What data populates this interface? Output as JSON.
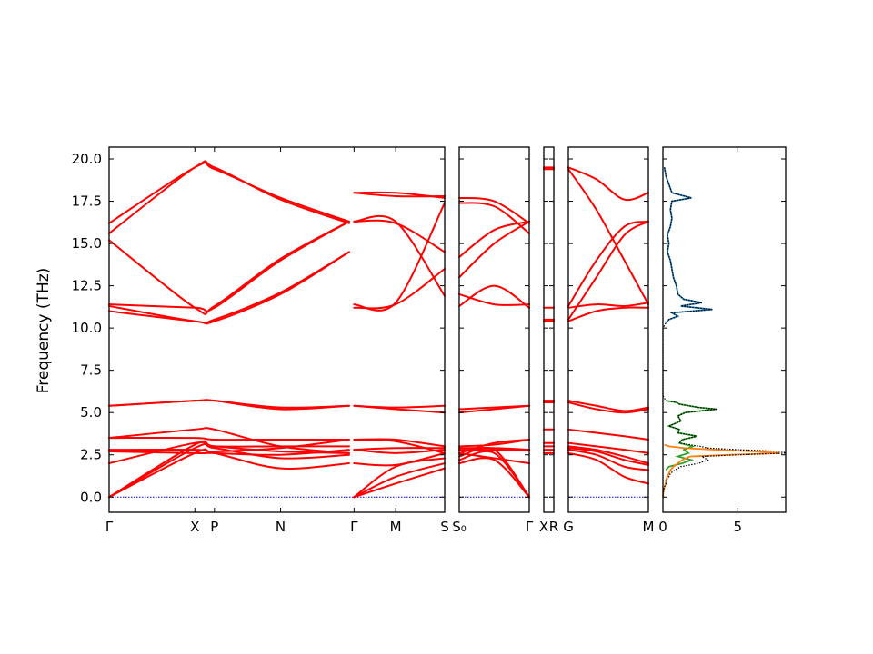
{
  "chart_data": {
    "type": "line",
    "ylabel": "Frequency (THz)",
    "ylim": [
      -0.9,
      20.7
    ],
    "y_ticks": [
      0.0,
      2.5,
      5.0,
      7.5,
      10.0,
      12.5,
      15.0,
      17.5,
      20.0
    ],
    "y_tick_labels": [
      "0.0",
      "2.5",
      "5.0",
      "7.5",
      "10.0",
      "12.5",
      "15.0",
      "17.5",
      "20.0"
    ],
    "band_color": "#ff0000",
    "zero_line_color": "#0000cc",
    "band_panels": [
      {
        "name": "panel-1",
        "x_ticks": [
          0,
          0.35,
          0.43,
          0.7,
          1.0,
          1.17,
          1.37
        ],
        "x_tick_labels": [
          "Γ",
          "X",
          "P",
          "N",
          "Γ",
          "M",
          "S"
        ],
        "segments": [
          {
            "x": [
              0,
              0.35,
              0.43,
              0.7,
              0.98
            ],
            "bands": [
              [
                0.0,
                2.6,
                2.6,
                1.7,
                2.0
              ],
              [
                0.0,
                2.9,
                2.9,
                2.3,
                2.5
              ],
              [
                0.0,
                3.1,
                3.0,
                2.7,
                2.6
              ],
              [
                2.0,
                3.2,
                3.0,
                3.0,
                3.0
              ],
              [
                2.7,
                2.6,
                2.6,
                2.5,
                2.8
              ],
              [
                2.8,
                2.8,
                2.7,
                2.9,
                3.4
              ],
              [
                3.5,
                4.0,
                4.0,
                3.0,
                2.6
              ],
              [
                3.5,
                3.5,
                3.4,
                3.4,
                3.4
              ],
              [
                5.4,
                5.7,
                5.7,
                5.2,
                5.4
              ],
              [
                5.4,
                5.7,
                5.7,
                5.3,
                5.4
              ],
              [
                11.0,
                10.4,
                10.4,
                12.0,
                14.5
              ],
              [
                11.3,
                10.4,
                10.5,
                12.1,
                14.5
              ],
              [
                11.4,
                11.2,
                11.2,
                14.0,
                16.3
              ],
              [
                15.2,
                11.2,
                11.3,
                14.1,
                16.3
              ],
              [
                15.6,
                19.5,
                19.5,
                17.6,
                16.2
              ],
              [
                16.2,
                19.5,
                19.4,
                17.7,
                16.3
              ]
            ]
          },
          {
            "x": [
              1.0,
              1.17,
              1.37
            ],
            "bands": [
              [
                0.0,
                0.8,
                1.7
              ],
              [
                0.0,
                1.2,
                2.0
              ],
              [
                0.0,
                1.8,
                2.3
              ],
              [
                2.0,
                1.9,
                2.6
              ],
              [
                2.8,
                2.6,
                2.8
              ],
              [
                2.8,
                2.9,
                2.9
              ],
              [
                3.4,
                3.4,
                3.0
              ],
              [
                3.4,
                3.3,
                2.6
              ],
              [
                5.4,
                5.2,
                5.0
              ],
              [
                5.4,
                5.3,
                5.4
              ],
              [
                11.2,
                11.4,
                13.5
              ],
              [
                11.4,
                11.5,
                17.4
              ],
              [
                16.3,
                16.3,
                11.9
              ],
              [
                16.3,
                16.2,
                14.5
              ],
              [
                18.0,
                18.0,
                17.7
              ],
              [
                18.0,
                17.8,
                17.8
              ]
            ]
          }
        ]
      },
      {
        "name": "panel-2",
        "x_ticks": [
          0,
          1
        ],
        "x_tick_labels": [
          "S₀",
          "Γ"
        ],
        "segments": [
          {
            "x": [
              0,
              0.5,
              1.0
            ],
            "bands": [
              [
                2.0,
                2.2,
                0.0
              ],
              [
                2.2,
                2.6,
                0.0
              ],
              [
                2.4,
                2.8,
                0.0
              ],
              [
                2.6,
                2.3,
                2.0
              ],
              [
                2.8,
                2.8,
                2.8
              ],
              [
                2.9,
                2.9,
                2.8
              ],
              [
                3.0,
                3.1,
                3.4
              ],
              [
                2.6,
                3.2,
                3.4
              ],
              [
                5.0,
                5.2,
                5.4
              ],
              [
                5.2,
                5.3,
                5.4
              ],
              [
                11.3,
                12.5,
                11.2
              ],
              [
                12.0,
                11.4,
                11.4
              ],
              [
                13.0,
                15.0,
                16.3
              ],
              [
                14.2,
                15.8,
                16.3
              ],
              [
                17.4,
                17.2,
                15.6
              ],
              [
                17.7,
                17.5,
                16.2
              ]
            ]
          }
        ]
      },
      {
        "name": "panel-3",
        "x_ticks": [
          0,
          1
        ],
        "x_tick_labels": [
          "X",
          "R"
        ],
        "segments": [
          {
            "x": [
              0,
              1.0
            ],
            "bands": [
              [
                2.6,
                2.6
              ],
              [
                2.8,
                2.8
              ],
              [
                3.0,
                3.0
              ],
              [
                3.2,
                3.2
              ],
              [
                4.0,
                4.0
              ],
              [
                5.6,
                5.6
              ],
              [
                5.7,
                5.7
              ],
              [
                10.4,
                10.4
              ],
              [
                10.5,
                10.5
              ],
              [
                11.2,
                11.2
              ],
              [
                19.4,
                19.4
              ],
              [
                19.5,
                19.5
              ]
            ]
          }
        ]
      },
      {
        "name": "panel-4",
        "x_ticks": [
          0,
          1
        ],
        "x_tick_labels": [
          "G",
          "M"
        ],
        "segments": [
          {
            "x": [
              0,
              0.35,
              0.7,
              1.0
            ],
            "bands": [
              [
                2.6,
                2.2,
                1.2,
                0.8
              ],
              [
                2.8,
                2.5,
                1.8,
                1.6
              ],
              [
                2.9,
                2.7,
                2.2,
                1.9
              ],
              [
                3.0,
                2.8,
                2.4,
                2.0
              ],
              [
                3.2,
                3.0,
                2.8,
                2.6
              ],
              [
                4.0,
                3.8,
                3.6,
                3.4
              ],
              [
                5.6,
                5.2,
                5.0,
                5.2
              ],
              [
                5.7,
                5.4,
                5.1,
                5.3
              ],
              [
                10.4,
                11.0,
                11.2,
                11.2
              ],
              [
                10.5,
                13.0,
                15.5,
                16.3
              ],
              [
                11.2,
                11.4,
                11.3,
                11.5
              ],
              [
                11.3,
                14.0,
                16.0,
                16.3
              ],
              [
                19.4,
                17.0,
                14.0,
                11.4
              ],
              [
                19.5,
                18.8,
                17.6,
                18.0
              ]
            ]
          }
        ]
      }
    ],
    "dos_panel": {
      "xlim": [
        0,
        8.2
      ],
      "x_ticks": [
        0,
        5
      ],
      "x_tick_labels": [
        "0",
        "5"
      ],
      "series": [
        {
          "color": "#1f77b4",
          "freq": [
            19.5,
            19.0,
            18.5,
            18.0,
            17.7,
            17.5,
            17.0,
            16.5,
            16.0,
            15.5,
            15.0,
            14.5,
            14.0,
            13.5,
            13.0,
            12.5,
            12.0,
            11.7,
            11.5,
            11.3,
            11.1,
            10.9,
            10.7,
            10.5,
            10.3
          ],
          "dos": [
            0.1,
            0.2,
            0.4,
            0.6,
            1.9,
            0.6,
            0.5,
            0.6,
            0.5,
            0.3,
            0.4,
            0.3,
            0.5,
            0.6,
            0.7,
            0.9,
            1.0,
            1.4,
            2.6,
            1.2,
            3.3,
            0.6,
            1.0,
            0.4,
            0.2
          ]
        },
        {
          "color": "#2ca02c",
          "freq": [
            5.7,
            5.6,
            5.5,
            5.3,
            5.2,
            5.0,
            4.8,
            4.5,
            4.2,
            4.0,
            3.8,
            3.6,
            3.4,
            3.2,
            3.0,
            2.8,
            2.6,
            2.4,
            2.2,
            2.0,
            1.8,
            1.6
          ],
          "dos": [
            0.2,
            0.9,
            1.1,
            2.4,
            3.6,
            1.5,
            1.0,
            1.2,
            0.4,
            1.1,
            1.0,
            2.3,
            1.3,
            1.1,
            2.0,
            1.4,
            1.7,
            1.0,
            1.9,
            1.3,
            0.4,
            0.2
          ]
        },
        {
          "color": "#ff7f0e",
          "freq": [
            3.1,
            3.0,
            2.9,
            2.8,
            2.7,
            2.6,
            2.5,
            2.4,
            2.2,
            2.0,
            1.8,
            1.6,
            1.4,
            1.2,
            1.0,
            0.8,
            0.6,
            0.4,
            0.2,
            0.0
          ],
          "dos": [
            0.1,
            0.4,
            1.4,
            3.6,
            6.2,
            7.8,
            4.4,
            1.8,
            1.3,
            1.0,
            0.7,
            0.5,
            0.4,
            0.3,
            0.2,
            0.2,
            0.1,
            0.05,
            0.02,
            0.0
          ]
        },
        {
          "color": "#000000",
          "freq": [
            19.5,
            19.0,
            18.5,
            18.0,
            17.7,
            17.5,
            17.0,
            16.5,
            16.0,
            15.5,
            15.0,
            14.5,
            14.0,
            13.5,
            13.0,
            12.5,
            12.0,
            11.7,
            11.5,
            11.3,
            11.1,
            10.9,
            10.7,
            10.5,
            10.3,
            10.0,
            8.0,
            6.0,
            5.7,
            5.6,
            5.5,
            5.3,
            5.2,
            5.0,
            4.8,
            4.5,
            4.2,
            4.0,
            3.8,
            3.6,
            3.4,
            3.2,
            3.0,
            2.9,
            2.8,
            2.7,
            2.6,
            2.5,
            2.4,
            2.2,
            2.0,
            1.8,
            1.6,
            1.4,
            1.2,
            1.0,
            0.8,
            0.6,
            0.4,
            0.2,
            0.0
          ],
          "dos": [
            0.1,
            0.2,
            0.4,
            0.6,
            1.9,
            0.6,
            0.5,
            0.6,
            0.5,
            0.3,
            0.4,
            0.3,
            0.5,
            0.6,
            0.7,
            0.9,
            1.0,
            1.4,
            2.6,
            1.2,
            3.3,
            0.6,
            1.0,
            0.4,
            0.2,
            0.0,
            0.0,
            0.0,
            0.2,
            0.9,
            1.1,
            2.4,
            3.6,
            1.5,
            1.0,
            1.2,
            0.4,
            1.1,
            1.0,
            2.3,
            1.3,
            1.1,
            2.5,
            3.0,
            5.2,
            8.0,
            8.2,
            5.0,
            2.6,
            3.0,
            2.4,
            1.2,
            0.8,
            0.5,
            0.4,
            0.2,
            0.2,
            0.1,
            0.05,
            0.02,
            0.0
          ]
        }
      ]
    }
  }
}
